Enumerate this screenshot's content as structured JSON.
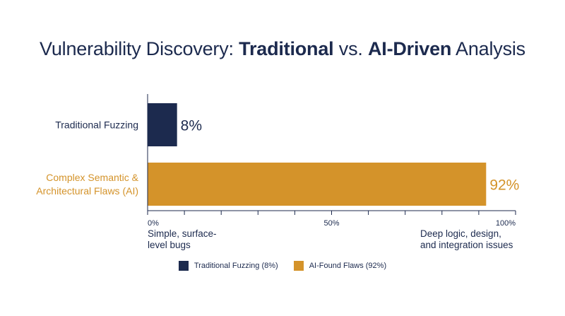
{
  "title": {
    "part1": "Vulnerability Discovery: ",
    "part2": "Traditional",
    "part3": " vs. ",
    "part4": "AI-Driven",
    "part5": " Analysis"
  },
  "chart_data": {
    "type": "bar",
    "orientation": "horizontal",
    "title": "Vulnerability Discovery: Traditional vs. AI-Driven Analysis",
    "categories": [
      "Traditional Fuzzing",
      "Complex Semantic & Architectural Flaws (AI)"
    ],
    "category_lines": [
      [
        "Traditional Fuzzing"
      ],
      [
        "Complex Semantic &",
        "Architectural Flaws (AI)"
      ]
    ],
    "values": [
      8,
      92
    ],
    "value_labels": [
      "8%",
      "92%"
    ],
    "colors": [
      "#1c2a4e",
      "#d4932a"
    ],
    "xlim": [
      0,
      100
    ],
    "ticks": [
      0,
      10,
      20,
      30,
      40,
      50,
      60,
      70,
      80,
      90,
      100
    ],
    "tick_labels": {
      "0": "0%",
      "50": "50%",
      "100": "100%"
    },
    "axis_notes": {
      "left": [
        "Simple, surface-",
        "level bugs"
      ],
      "right": [
        "Deep logic, design,",
        "and integration issues"
      ]
    },
    "legend": [
      "Traditional Fuzzing (8%)",
      "AI-Found Flaws (92%)"
    ],
    "legend_position": "bottom"
  }
}
